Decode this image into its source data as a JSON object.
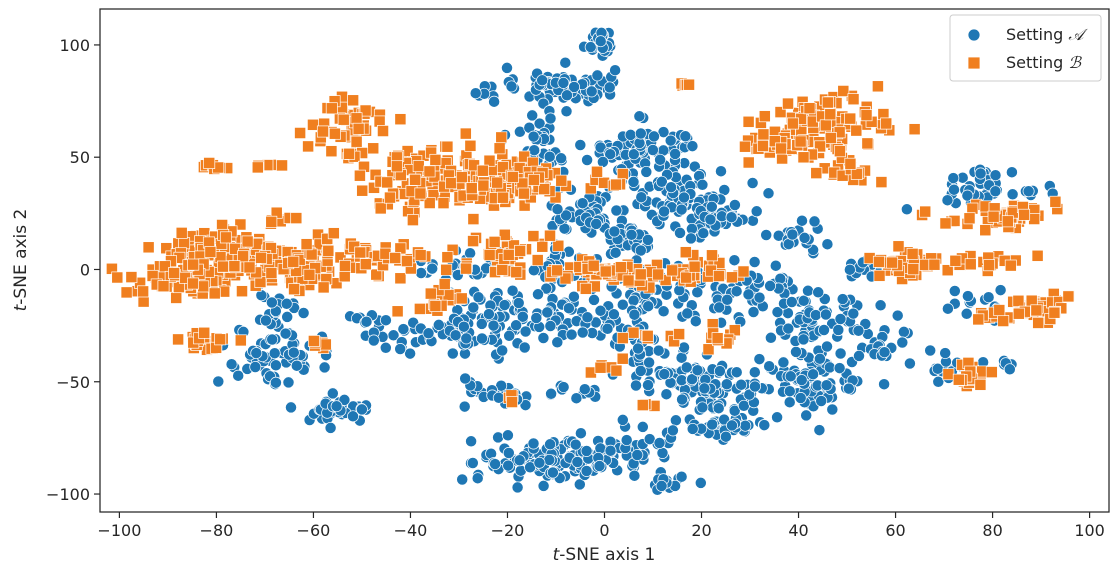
{
  "chart_data": {
    "type": "scatter",
    "xlabel": "t-SNE axis 1",
    "xlabel_italic": "t",
    "xlabel_rest": "-SNE axis 1",
    "ylabel": "t-SNE axis 2",
    "ylabel_italic": "t",
    "ylabel_rest": "-SNE axis 2",
    "xlim": [
      -104,
      104
    ],
    "ylim": [
      -108,
      116
    ],
    "xticks": [
      -100,
      -80,
      -60,
      -40,
      -20,
      0,
      20,
      40,
      60,
      80,
      100
    ],
    "yticks": [
      -100,
      -50,
      0,
      50,
      100
    ],
    "xtick_labels": [
      "−100",
      "−80",
      "−60",
      "−40",
      "−20",
      "0",
      "20",
      "40",
      "60",
      "80",
      "100"
    ],
    "ytick_labels": [
      "−100",
      "−50",
      "0",
      "50",
      "100"
    ],
    "grid": false,
    "legend_position": "top-right",
    "series": [
      {
        "name": "Setting A",
        "legend_prefix": "Setting ",
        "legend_symbol": "𝒜",
        "marker": "circle",
        "color": "#1f77b4",
        "clusters": [
          {
            "cx": -1,
            "cy": 101,
            "sx": 1.8,
            "sy": 3,
            "n": 25
          },
          {
            "cx": -8,
            "cy": 82,
            "sx": 5,
            "sy": 4,
            "n": 70
          },
          {
            "cx": -14,
            "cy": 58,
            "sx": 3,
            "sy": 8,
            "n": 40
          },
          {
            "cx": -24,
            "cy": 80,
            "sx": 1.5,
            "sy": 2,
            "n": 8
          },
          {
            "cx": 8,
            "cy": 52,
            "sx": 6,
            "sy": 6,
            "n": 90
          },
          {
            "cx": 16,
            "cy": 32,
            "sx": 7,
            "sy": 6,
            "n": 80
          },
          {
            "cx": 22,
            "cy": 22,
            "sx": 4,
            "sy": 5,
            "n": 40
          },
          {
            "cx": -5,
            "cy": 25,
            "sx": 4,
            "sy": 4,
            "n": 40
          },
          {
            "cx": 6,
            "cy": 14,
            "sx": 3,
            "sy": 4,
            "n": 30
          },
          {
            "cx": -10,
            "cy": 0,
            "sx": 5,
            "sy": 5,
            "n": 35
          },
          {
            "cx": 15,
            "cy": -8,
            "sx": 9,
            "sy": 7,
            "n": 80
          },
          {
            "cx": -20,
            "cy": -20,
            "sx": 9,
            "sy": 6,
            "n": 80
          },
          {
            "cx": -35,
            "cy": -30,
            "sx": 8,
            "sy": 4,
            "n": 50
          },
          {
            "cx": -28,
            "cy": 2,
            "sx": 6,
            "sy": 4,
            "n": 30
          },
          {
            "cx": -2,
            "cy": -20,
            "sx": 5,
            "sy": 5,
            "n": 40
          },
          {
            "cx": 12,
            "cy": -45,
            "sx": 5,
            "sy": 5,
            "n": 40
          },
          {
            "cx": 22,
            "cy": -52,
            "sx": 4,
            "sy": 6,
            "n": 70
          },
          {
            "cx": 25,
            "cy": -70,
            "sx": 5,
            "sy": 2.5,
            "n": 40
          },
          {
            "cx": 42,
            "cy": -50,
            "sx": 6,
            "sy": 8,
            "n": 90
          },
          {
            "cx": 45,
            "cy": -25,
            "sx": 6,
            "sy": 5,
            "n": 60
          },
          {
            "cx": 35,
            "cy": -10,
            "sx": 5,
            "sy": 6,
            "n": 40
          },
          {
            "cx": 40,
            "cy": 15,
            "sx": 3,
            "sy": 3,
            "n": 20
          },
          {
            "cx": -12,
            "cy": -85,
            "sx": 7,
            "sy": 5,
            "n": 110
          },
          {
            "cx": 5,
            "cy": -80,
            "sx": 6,
            "sy": 5,
            "n": 50
          },
          {
            "cx": 12,
            "cy": -95,
            "sx": 3,
            "sy": 2,
            "n": 15
          },
          {
            "cx": -22,
            "cy": -55,
            "sx": 4,
            "sy": 3,
            "n": 25
          },
          {
            "cx": -3,
            "cy": -55,
            "sx": 2,
            "sy": 2,
            "n": 8
          },
          {
            "cx": -10,
            "cy": -55,
            "sx": 1.5,
            "sy": 2,
            "n": 6
          },
          {
            "cx": -55,
            "cy": -63,
            "sx": 3,
            "sy": 2.5,
            "n": 35
          },
          {
            "cx": -68,
            "cy": -40,
            "sx": 6,
            "sy": 7,
            "n": 60
          },
          {
            "cx": -68,
            "cy": -15,
            "sx": 3,
            "sy": 6,
            "n": 20
          },
          {
            "cx": -50,
            "cy": -22,
            "sx": 2,
            "sy": 1.5,
            "n": 8
          },
          {
            "cx": 78,
            "cy": 38,
            "sx": 4,
            "sy": 4,
            "n": 35
          },
          {
            "cx": 87,
            "cy": 35,
            "sx": 2,
            "sy": 1.5,
            "n": 8
          },
          {
            "cx": 72,
            "cy": -45,
            "sx": 3,
            "sy": 2,
            "n": 15
          },
          {
            "cx": 82,
            "cy": -42,
            "sx": 2,
            "sy": 1.5,
            "n": 8
          },
          {
            "cx": 78,
            "cy": -15,
            "sx": 3,
            "sy": 3,
            "n": 15
          },
          {
            "cx": 58,
            "cy": -38,
            "sx": 4,
            "sy": 2,
            "n": 15
          },
          {
            "cx": 52,
            "cy": 0,
            "sx": 3,
            "sy": 3,
            "n": 15
          },
          {
            "cx": 6,
            "cy": -30,
            "sx": 4,
            "sy": 3,
            "n": 20
          }
        ]
      },
      {
        "name": "Setting B",
        "legend_prefix": "Setting ",
        "legend_symbol": "ℬ",
        "marker": "square",
        "color": "#f07f1f",
        "clusters": [
          {
            "cx": -52,
            "cy": 64,
            "sx": 4,
            "sy": 7,
            "n": 50
          },
          {
            "cx": -40,
            "cy": 40,
            "sx": 6,
            "sy": 8,
            "n": 80
          },
          {
            "cx": -25,
            "cy": 40,
            "sx": 6,
            "sy": 8,
            "n": 100
          },
          {
            "cx": -15,
            "cy": 40,
            "sx": 3,
            "sy": 5,
            "n": 40
          },
          {
            "cx": -78,
            "cy": 5,
            "sx": 7,
            "sy": 7,
            "n": 120
          },
          {
            "cx": -88,
            "cy": -5,
            "sx": 5,
            "sy": 4,
            "n": 60
          },
          {
            "cx": -65,
            "cy": 0,
            "sx": 6,
            "sy": 6,
            "n": 50
          },
          {
            "cx": -55,
            "cy": 5,
            "sx": 6,
            "sy": 4,
            "n": 40
          },
          {
            "cx": -45,
            "cy": 5,
            "sx": 4,
            "sy": 3,
            "n": 25
          },
          {
            "cx": -82,
            "cy": -32,
            "sx": 3,
            "sy": 2,
            "n": 25
          },
          {
            "cx": -80,
            "cy": 46,
            "sx": 2,
            "sy": 1,
            "n": 8
          },
          {
            "cx": -70,
            "cy": 47,
            "sx": 1.5,
            "sy": 1,
            "n": 5
          },
          {
            "cx": -68,
            "cy": 22,
            "sx": 2,
            "sy": 2,
            "n": 8
          },
          {
            "cx": -35,
            "cy": -15,
            "sx": 4,
            "sy": 3,
            "n": 20
          },
          {
            "cx": -20,
            "cy": 5,
            "sx": 5,
            "sy": 4,
            "n": 25
          },
          {
            "cx": 5,
            "cy": -2,
            "sx": 10,
            "sy": 3,
            "n": 70
          },
          {
            "cx": 22,
            "cy": 0,
            "sx": 4,
            "sy": 3,
            "n": 20
          },
          {
            "cx": 45,
            "cy": 65,
            "sx": 6,
            "sy": 6,
            "n": 100
          },
          {
            "cx": 35,
            "cy": 55,
            "sx": 4,
            "sy": 3,
            "n": 30
          },
          {
            "cx": 50,
            "cy": 45,
            "sx": 3,
            "sy": 4,
            "n": 20
          },
          {
            "cx": 16,
            "cy": 83,
            "sx": 0.8,
            "sy": 0.8,
            "n": 5
          },
          {
            "cx": 63,
            "cy": 3,
            "sx": 4,
            "sy": 3,
            "n": 40
          },
          {
            "cx": 75,
            "cy": 3,
            "sx": 6,
            "sy": 2,
            "n": 30
          },
          {
            "cx": 82,
            "cy": 24,
            "sx": 5,
            "sy": 3,
            "n": 50
          },
          {
            "cx": 90,
            "cy": -17,
            "sx": 3,
            "sy": 3,
            "n": 40
          },
          {
            "cx": 75,
            "cy": -48,
            "sx": 2,
            "sy": 3,
            "n": 20
          },
          {
            "cx": 78,
            "cy": -20,
            "sx": 2,
            "sy": 2,
            "n": 10
          },
          {
            "cx": 10,
            "cy": -30,
            "sx": 3,
            "sy": 2,
            "n": 10
          },
          {
            "cx": 24,
            "cy": -30,
            "sx": 3,
            "sy": 4,
            "n": 10
          },
          {
            "cx": -58,
            "cy": -33,
            "sx": 2,
            "sy": 2,
            "n": 6
          },
          {
            "cx": -20,
            "cy": -57,
            "sx": 1.5,
            "sy": 1.5,
            "n": 4
          },
          {
            "cx": 0,
            "cy": -42,
            "sx": 2,
            "sy": 2,
            "n": 6
          },
          {
            "cx": -20,
            "cy": 12,
            "sx": 4,
            "sy": 3,
            "n": 15
          },
          {
            "cx": 0,
            "cy": 40,
            "sx": 3,
            "sy": 3,
            "n": 8
          },
          {
            "cx": 10,
            "cy": -61,
            "sx": 1,
            "sy": 1,
            "n": 3
          }
        ]
      }
    ]
  }
}
